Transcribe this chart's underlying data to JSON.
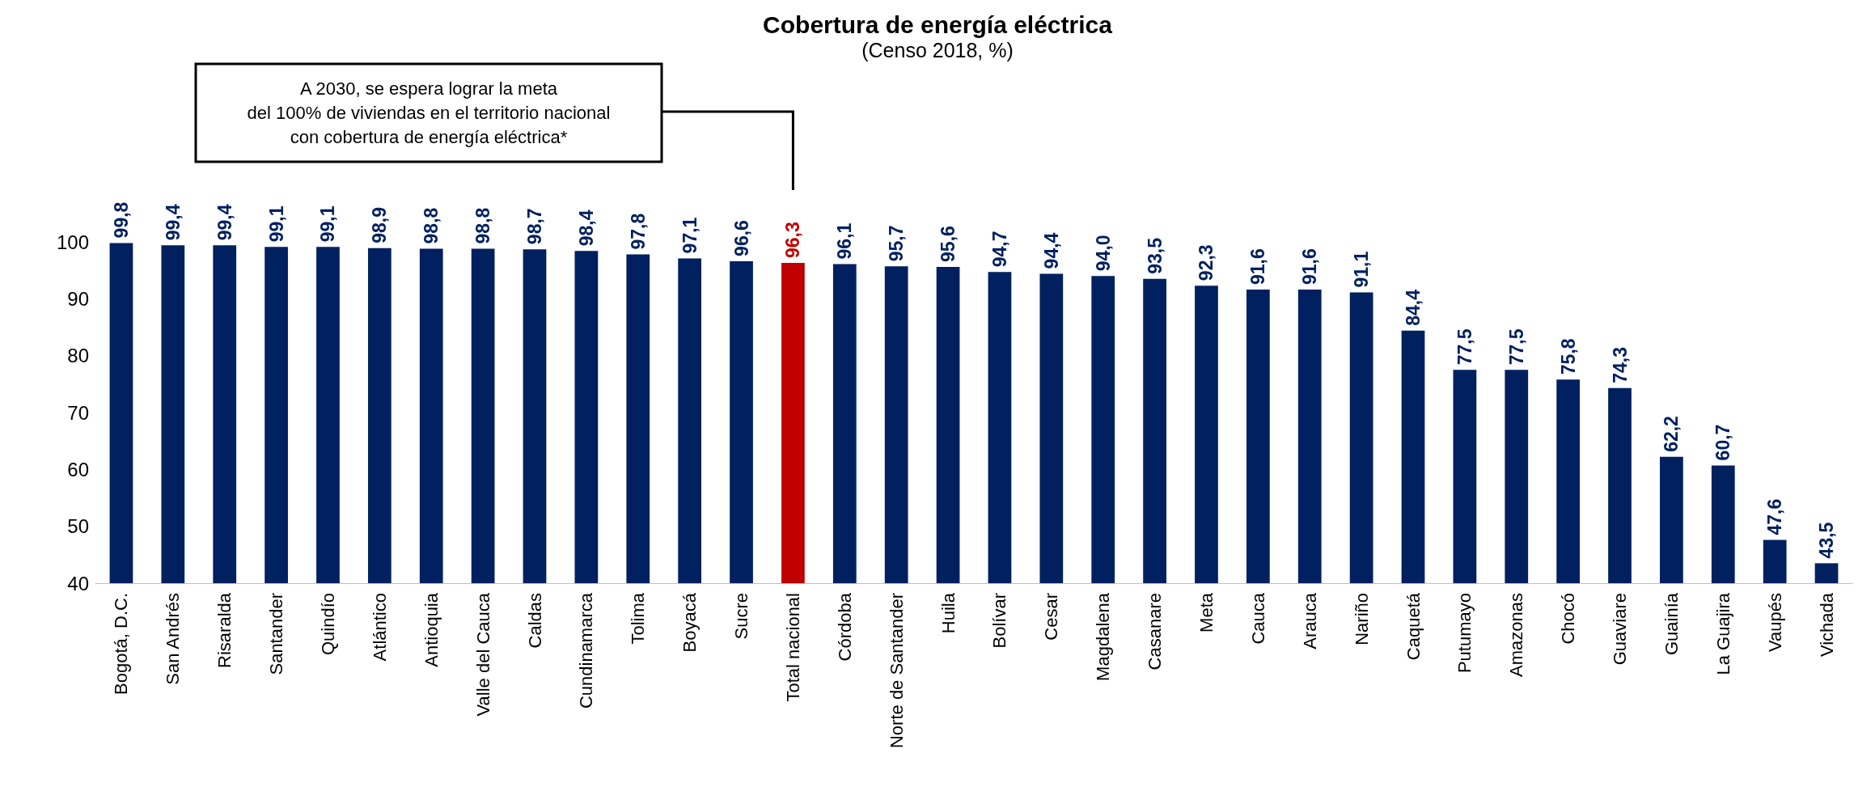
{
  "chart_data": {
    "type": "bar",
    "title": "Cobertura de energía eléctrica",
    "subtitle": "(Censo 2018, %)",
    "categories": [
      "Bogotá, D.C.",
      "San Andrés",
      "Risaralda",
      "Santander",
      "Quindío",
      "Atlántico",
      "Antioquia",
      "Valle del Cauca",
      "Caldas",
      "Cundinamarca",
      "Tolima",
      "Boyacá",
      "Sucre",
      "Total nacional",
      "Córdoba",
      "Norte de Santander",
      "Huila",
      "Bolívar",
      "Cesar",
      "Magdalena",
      "Casanare",
      "Meta",
      "Cauca",
      "Arauca",
      "Nariño",
      "Caquetá",
      "Putumayo",
      "Amazonas",
      "Chocó",
      "Guaviare",
      "Guainía",
      "La Guajira",
      "Vaupés",
      "Vichada"
    ],
    "values": [
      99.8,
      99.4,
      99.4,
      99.1,
      99.1,
      98.9,
      98.8,
      98.8,
      98.7,
      98.4,
      97.8,
      97.1,
      96.6,
      96.3,
      96.1,
      95.7,
      95.6,
      94.7,
      94.4,
      94.0,
      93.5,
      92.3,
      91.6,
      91.6,
      91.1,
      84.4,
      77.5,
      77.5,
      75.8,
      74.3,
      62.2,
      60.7,
      47.6,
      43.5
    ],
    "value_labels": [
      "99,8",
      "99,4",
      "99,4",
      "99,1",
      "99,1",
      "98,9",
      "98,8",
      "98,8",
      "98,7",
      "98,4",
      "97,8",
      "97,1",
      "96,6",
      "96,3",
      "96,1",
      "95,7",
      "95,6",
      "94,7",
      "94,4",
      "94,0",
      "93,5",
      "92,3",
      "91,6",
      "91,6",
      "91,1",
      "84,4",
      "77,5",
      "77,5",
      "75,8",
      "74,3",
      "62,2",
      "60,7",
      "47,6",
      "43,5"
    ],
    "colors": [
      "#002060",
      "#002060",
      "#002060",
      "#002060",
      "#002060",
      "#002060",
      "#002060",
      "#002060",
      "#002060",
      "#002060",
      "#002060",
      "#002060",
      "#002060",
      "#c00000",
      "#002060",
      "#002060",
      "#002060",
      "#002060",
      "#002060",
      "#002060",
      "#002060",
      "#002060",
      "#002060",
      "#002060",
      "#002060",
      "#002060",
      "#002060",
      "#002060",
      "#002060",
      "#002060",
      "#002060",
      "#002060",
      "#002060",
      "#002060"
    ],
    "ylim": [
      40,
      100
    ],
    "yticks": [
      40,
      50,
      60,
      70,
      80,
      90,
      100
    ],
    "grid": false,
    "annotations": [
      "A 2030, se espera lograr la meta\ndel 100% de viviendas en el territorio nacional\ncon cobertura de energía eléctrica*"
    ]
  }
}
